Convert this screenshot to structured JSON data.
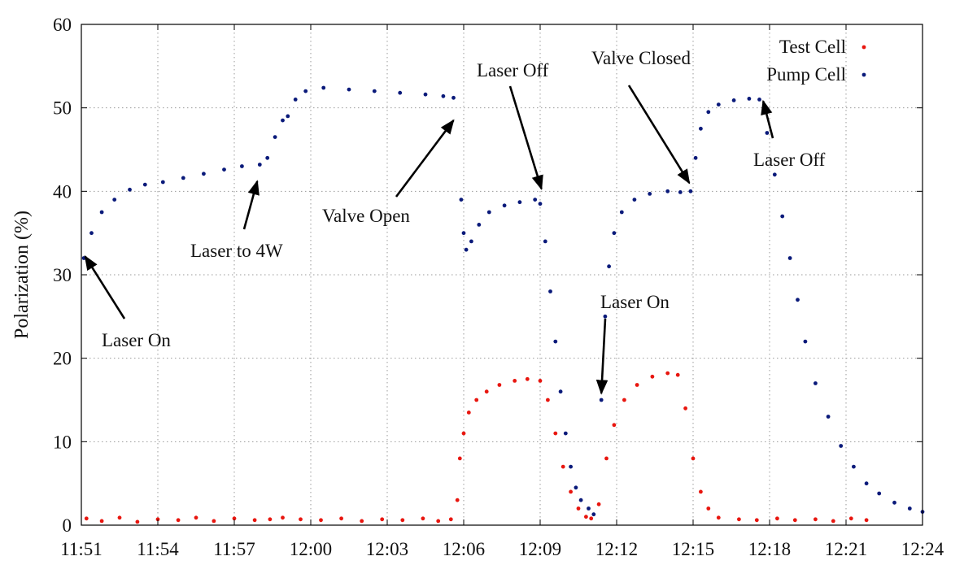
{
  "chart_data": {
    "type": "scatter",
    "title": "",
    "xlabel": "",
    "ylabel": "Polarization (%)",
    "xlim_minutes": [
      0,
      33
    ],
    "ylim": [
      0,
      60
    ],
    "grid": true,
    "legend_position": "top-right",
    "x_ticks": [
      {
        "minutes": 0,
        "label": "11:51"
      },
      {
        "minutes": 3,
        "label": "11:54"
      },
      {
        "minutes": 6,
        "label": "11:57"
      },
      {
        "minutes": 9,
        "label": "12:00"
      },
      {
        "minutes": 12,
        "label": "12:03"
      },
      {
        "minutes": 15,
        "label": "12:06"
      },
      {
        "minutes": 18,
        "label": "12:09"
      },
      {
        "minutes": 21,
        "label": "12:12"
      },
      {
        "minutes": 24,
        "label": "12:15"
      },
      {
        "minutes": 27,
        "label": "12:18"
      },
      {
        "minutes": 30,
        "label": "12:21"
      },
      {
        "minutes": 33,
        "label": "12:24"
      }
    ],
    "y_ticks": [
      0,
      10,
      20,
      30,
      40,
      50,
      60
    ],
    "series": [
      {
        "name": "Test Cell",
        "color": "#e8160f",
        "points": [
          [
            0.2,
            0.8
          ],
          [
            0.8,
            0.5
          ],
          [
            1.5,
            0.9
          ],
          [
            2.2,
            0.4
          ],
          [
            3.0,
            0.7
          ],
          [
            3.8,
            0.6
          ],
          [
            4.5,
            0.9
          ],
          [
            5.2,
            0.5
          ],
          [
            6.0,
            0.8
          ],
          [
            6.8,
            0.6
          ],
          [
            7.4,
            0.7
          ],
          [
            7.9,
            0.9
          ],
          [
            8.6,
            0.7
          ],
          [
            9.4,
            0.6
          ],
          [
            10.2,
            0.8
          ],
          [
            11.0,
            0.5
          ],
          [
            11.8,
            0.7
          ],
          [
            12.6,
            0.6
          ],
          [
            13.4,
            0.8
          ],
          [
            14.0,
            0.5
          ],
          [
            14.5,
            0.7
          ],
          [
            14.75,
            3
          ],
          [
            14.85,
            8
          ],
          [
            15.0,
            11
          ],
          [
            15.2,
            13.5
          ],
          [
            15.5,
            15
          ],
          [
            15.9,
            16
          ],
          [
            16.4,
            16.8
          ],
          [
            17.0,
            17.3
          ],
          [
            17.5,
            17.5
          ],
          [
            18.0,
            17.3
          ],
          [
            18.3,
            15
          ],
          [
            18.6,
            11
          ],
          [
            18.9,
            7
          ],
          [
            19.2,
            4
          ],
          [
            19.5,
            2
          ],
          [
            19.8,
            1
          ],
          [
            20.0,
            0.8
          ],
          [
            20.3,
            2.5
          ],
          [
            20.6,
            8
          ],
          [
            20.9,
            12
          ],
          [
            21.3,
            15
          ],
          [
            21.8,
            16.8
          ],
          [
            22.4,
            17.8
          ],
          [
            23.0,
            18.2
          ],
          [
            23.4,
            18
          ],
          [
            23.7,
            14
          ],
          [
            24.0,
            8
          ],
          [
            24.3,
            4
          ],
          [
            24.6,
            2
          ],
          [
            25.0,
            0.9
          ],
          [
            25.8,
            0.7
          ],
          [
            26.5,
            0.6
          ],
          [
            27.3,
            0.8
          ],
          [
            28.0,
            0.6
          ],
          [
            28.8,
            0.7
          ],
          [
            29.5,
            0.5
          ],
          [
            30.2,
            0.8
          ],
          [
            30.8,
            0.6
          ]
        ]
      },
      {
        "name": "Pump Cell",
        "color": "#0a1a7a",
        "points": [
          [
            0.1,
            32
          ],
          [
            0.4,
            35
          ],
          [
            0.8,
            37.5
          ],
          [
            1.3,
            39
          ],
          [
            1.9,
            40.2
          ],
          [
            2.5,
            40.8
          ],
          [
            3.2,
            41.1
          ],
          [
            4.0,
            41.6
          ],
          [
            4.8,
            42.1
          ],
          [
            5.6,
            42.6
          ],
          [
            6.3,
            43
          ],
          [
            7.0,
            43.2
          ],
          [
            7.3,
            44
          ],
          [
            7.6,
            46.5
          ],
          [
            7.9,
            48.5
          ],
          [
            8.1,
            49
          ],
          [
            8.4,
            51
          ],
          [
            8.8,
            52
          ],
          [
            9.5,
            52.4
          ],
          [
            10.5,
            52.2
          ],
          [
            11.5,
            52
          ],
          [
            12.5,
            51.8
          ],
          [
            13.5,
            51.6
          ],
          [
            14.2,
            51.4
          ],
          [
            14.6,
            51.2
          ],
          [
            14.9,
            39
          ],
          [
            15.0,
            35
          ],
          [
            15.1,
            33
          ],
          [
            15.3,
            34
          ],
          [
            15.6,
            36
          ],
          [
            16.0,
            37.5
          ],
          [
            16.6,
            38.3
          ],
          [
            17.2,
            38.7
          ],
          [
            17.8,
            39
          ],
          [
            18.0,
            38.5
          ],
          [
            18.2,
            34
          ],
          [
            18.4,
            28
          ],
          [
            18.6,
            22
          ],
          [
            18.8,
            16
          ],
          [
            19.0,
            11
          ],
          [
            19.2,
            7
          ],
          [
            19.4,
            4.5
          ],
          [
            19.6,
            3
          ],
          [
            19.9,
            2
          ],
          [
            20.1,
            1.3
          ],
          [
            20.4,
            15
          ],
          [
            20.55,
            25
          ],
          [
            20.7,
            31
          ],
          [
            20.9,
            35
          ],
          [
            21.2,
            37.5
          ],
          [
            21.7,
            39
          ],
          [
            22.3,
            39.7
          ],
          [
            23.0,
            40
          ],
          [
            23.5,
            39.9
          ],
          [
            23.9,
            40
          ],
          [
            24.1,
            44
          ],
          [
            24.3,
            47.5
          ],
          [
            24.6,
            49.5
          ],
          [
            25.0,
            50.4
          ],
          [
            25.6,
            50.9
          ],
          [
            26.2,
            51.1
          ],
          [
            26.6,
            51
          ],
          [
            26.9,
            47
          ],
          [
            27.2,
            42
          ],
          [
            27.5,
            37
          ],
          [
            27.8,
            32
          ],
          [
            28.1,
            27
          ],
          [
            28.4,
            22
          ],
          [
            28.8,
            17
          ],
          [
            29.3,
            13
          ],
          [
            29.8,
            9.5
          ],
          [
            30.3,
            7
          ],
          [
            30.8,
            5
          ],
          [
            31.3,
            3.8
          ],
          [
            31.9,
            2.7
          ],
          [
            32.5,
            2
          ],
          [
            33.0,
            1.6
          ]
        ]
      }
    ],
    "annotations": [
      {
        "text": "Laser On",
        "x_min": 0.15,
        "y": 32.2
      },
      {
        "text": "Laser to 4W",
        "x_min": 6.9,
        "y": 41.2
      },
      {
        "text": "Valve Open",
        "x_min": 14.6,
        "y": 48.5
      },
      {
        "text": "Laser Off",
        "x_min": 18.05,
        "y": 40.3
      },
      {
        "text": "Laser On",
        "x_min": 20.4,
        "y": 15.8
      },
      {
        "text": "Valve Closed",
        "x_min": 23.85,
        "y": 41.0
      },
      {
        "text": "Laser Off",
        "x_min": 26.75,
        "y": 50.8
      }
    ]
  }
}
